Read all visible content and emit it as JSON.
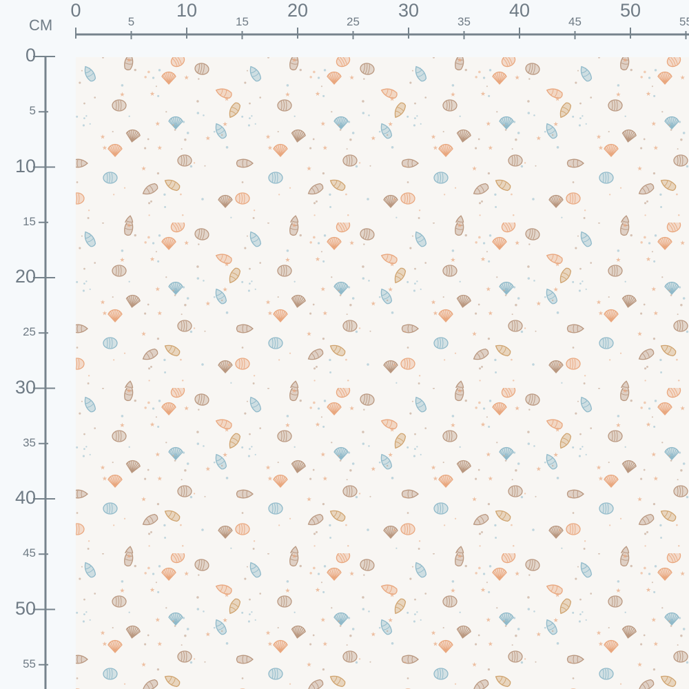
{
  "ruler": {
    "unit": "CM",
    "top_labels": [
      "0",
      "5",
      "10",
      "15",
      "20",
      "25",
      "30",
      "35",
      "40",
      "45",
      "50",
      "55"
    ],
    "left_labels": [
      "0",
      "5",
      "10",
      "15",
      "20",
      "25",
      "30",
      "35",
      "40",
      "45",
      "50",
      "55"
    ]
  },
  "fabric": {
    "pattern": "seashells",
    "background": "#f8f6f3",
    "colors": {
      "orange": "#e9a77e",
      "brown": "#b9977f",
      "tan": "#cfa36e",
      "blue": "#8fb9c9",
      "ruler": "#76838c"
    }
  }
}
